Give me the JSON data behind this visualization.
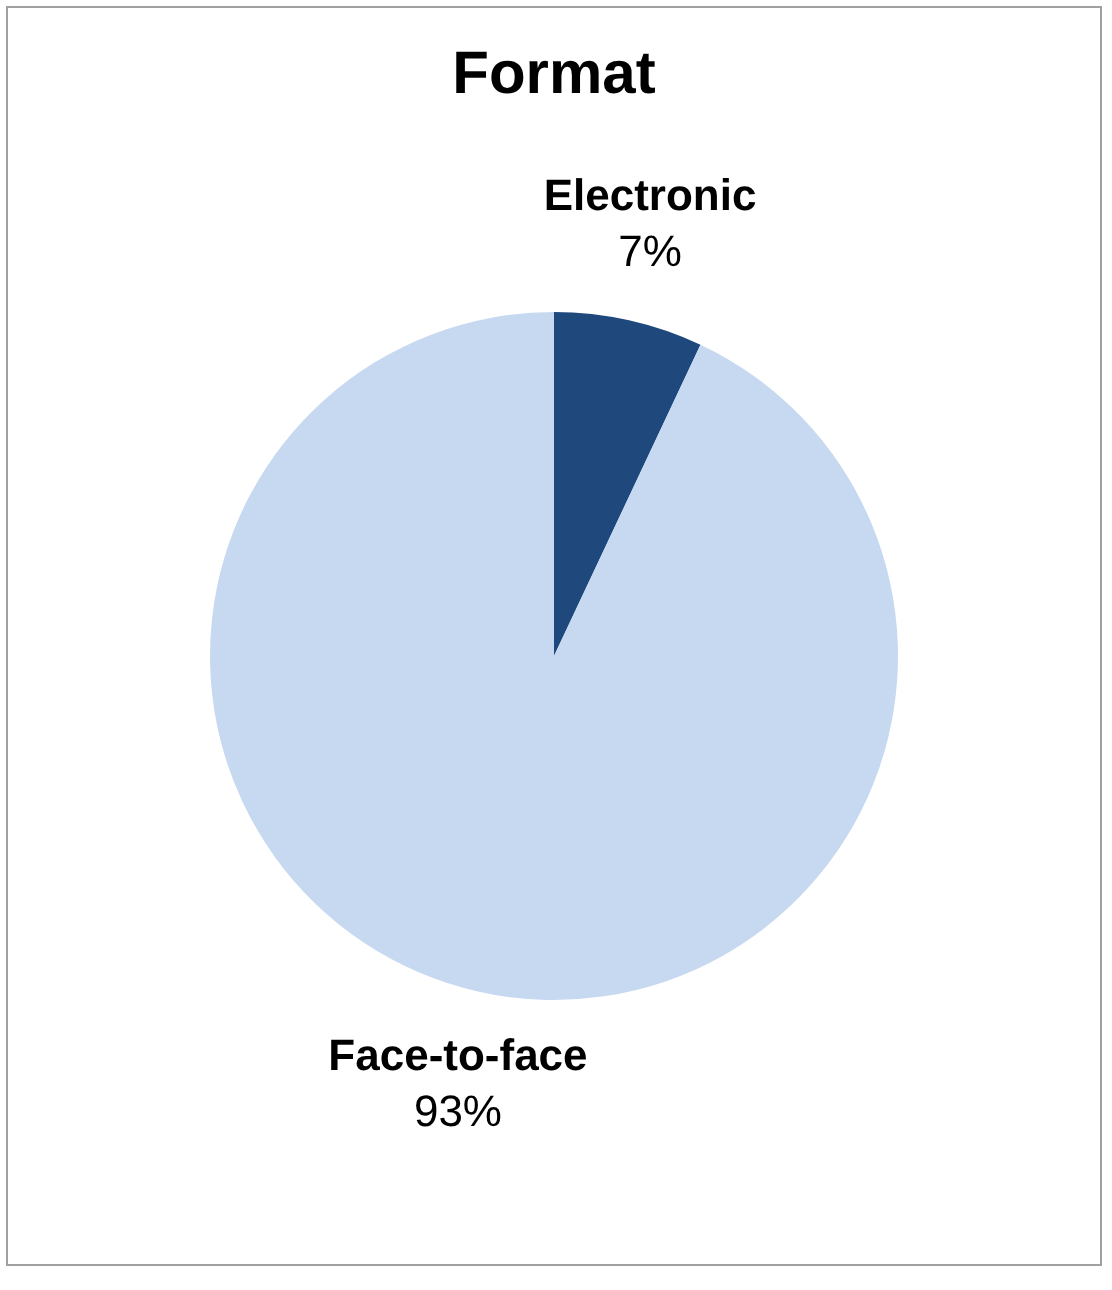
{
  "chart_data": {
    "type": "pie",
    "title": "Format",
    "categories": [
      "Electronic",
      "Face-to-face"
    ],
    "values": [
      7,
      93
    ],
    "colors": [
      "#1f497d",
      "#c6d9f1"
    ],
    "value_labels": [
      "7%",
      "93%"
    ],
    "legend": false
  }
}
